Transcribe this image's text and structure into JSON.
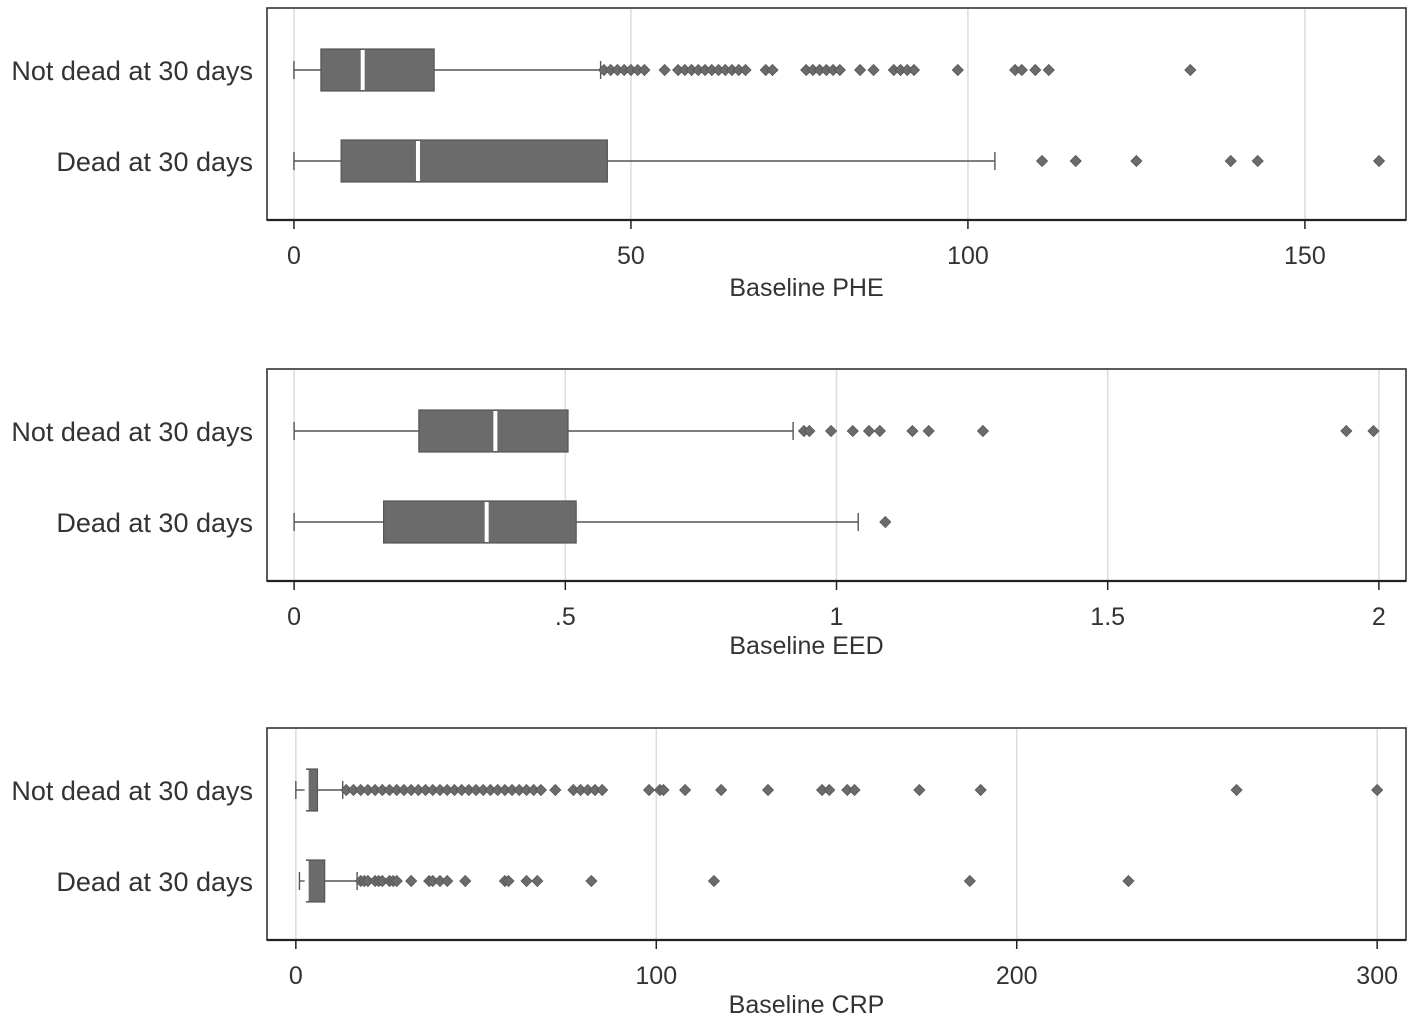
{
  "chart_data": [
    {
      "type": "boxplot",
      "orientation": "horizontal",
      "xlabel": "Baseline PHE",
      "xlim": [
        -4,
        165
      ],
      "ticks": [
        0,
        50,
        100,
        150
      ],
      "tick_labels": [
        "0",
        "50",
        "100",
        "150"
      ],
      "grid": true,
      "categories": [
        "Not dead at 30 days",
        "Dead at 30 days"
      ],
      "series": [
        {
          "name": "Not dead at 30 days",
          "whisker_low": 0,
          "q1": 4,
          "median": 10.2,
          "q3": 20.8,
          "whisker_high": 45.5,
          "outliers": [
            46,
            47,
            48,
            49,
            50,
            51,
            52,
            55,
            57,
            58,
            59,
            60,
            61,
            62,
            63,
            64,
            65,
            66,
            67,
            70,
            71,
            76,
            77,
            78,
            79,
            80,
            81,
            84,
            86,
            89,
            90,
            91,
            92,
            98.5,
            107,
            108,
            110,
            112,
            133
          ]
        },
        {
          "name": "Dead at 30 days",
          "whisker_low": 0,
          "q1": 7,
          "median": 18.4,
          "q3": 46.5,
          "whisker_high": 104,
          "outliers": [
            111,
            116,
            125,
            139,
            143,
            161
          ]
        }
      ]
    },
    {
      "type": "boxplot",
      "orientation": "horizontal",
      "xlabel": "Baseline EED",
      "xlim": [
        -0.05,
        2.05
      ],
      "ticks": [
        0,
        0.5,
        1,
        1.5,
        2
      ],
      "tick_labels": [
        "0",
        ".5",
        "1",
        "1.5",
        "2"
      ],
      "grid": true,
      "categories": [
        "Not dead at 30 days",
        "Dead at 30 days"
      ],
      "series": [
        {
          "name": "Not dead at 30 days",
          "whisker_low": 0,
          "q1": 0.23,
          "median": 0.371,
          "q3": 0.505,
          "whisker_high": 0.92,
          "outliers": [
            0.94,
            0.95,
            0.99,
            1.03,
            1.06,
            1.08,
            1.14,
            1.17,
            1.27,
            1.94,
            1.99
          ]
        },
        {
          "name": "Dead at 30 days",
          "whisker_low": 0,
          "q1": 0.165,
          "median": 0.355,
          "q3": 0.52,
          "whisker_high": 1.04,
          "outliers": [
            1.09
          ]
        }
      ]
    },
    {
      "type": "boxplot",
      "orientation": "horizontal",
      "xlabel": "Baseline CRP",
      "xlim": [
        -8,
        308
      ],
      "ticks": [
        0,
        100,
        200,
        300
      ],
      "tick_labels": [
        "0",
        "100",
        "200",
        "300"
      ],
      "grid": true,
      "categories": [
        "Not dead at 30 days",
        "Dead at 30 days"
      ],
      "series": [
        {
          "name": "Not dead at 30 days",
          "whisker_low": 0,
          "q1": 3,
          "median": 3,
          "q3": 6,
          "whisker_high": 13,
          "outliers": [
            14,
            16,
            18,
            20,
            22,
            24,
            26,
            28,
            30,
            32,
            34,
            36,
            38,
            40,
            42,
            44,
            46,
            48,
            50,
            52,
            54,
            56,
            58,
            60,
            62,
            64,
            66,
            68,
            72,
            77,
            79,
            81,
            83,
            85,
            98,
            101,
            102,
            108,
            118,
            131,
            146,
            148,
            153,
            155,
            173,
            190,
            261,
            300
          ]
        },
        {
          "name": "Dead at 30 days",
          "whisker_low": 1,
          "q1": 3,
          "median": 3,
          "q3": 8,
          "whisker_high": 17,
          "outliers": [
            18,
            19,
            20,
            22,
            23,
            24,
            26,
            27,
            28,
            32,
            37,
            38,
            40,
            42,
            47,
            58,
            59,
            64,
            67,
            82,
            116,
            187,
            231
          ]
        }
      ]
    }
  ]
}
